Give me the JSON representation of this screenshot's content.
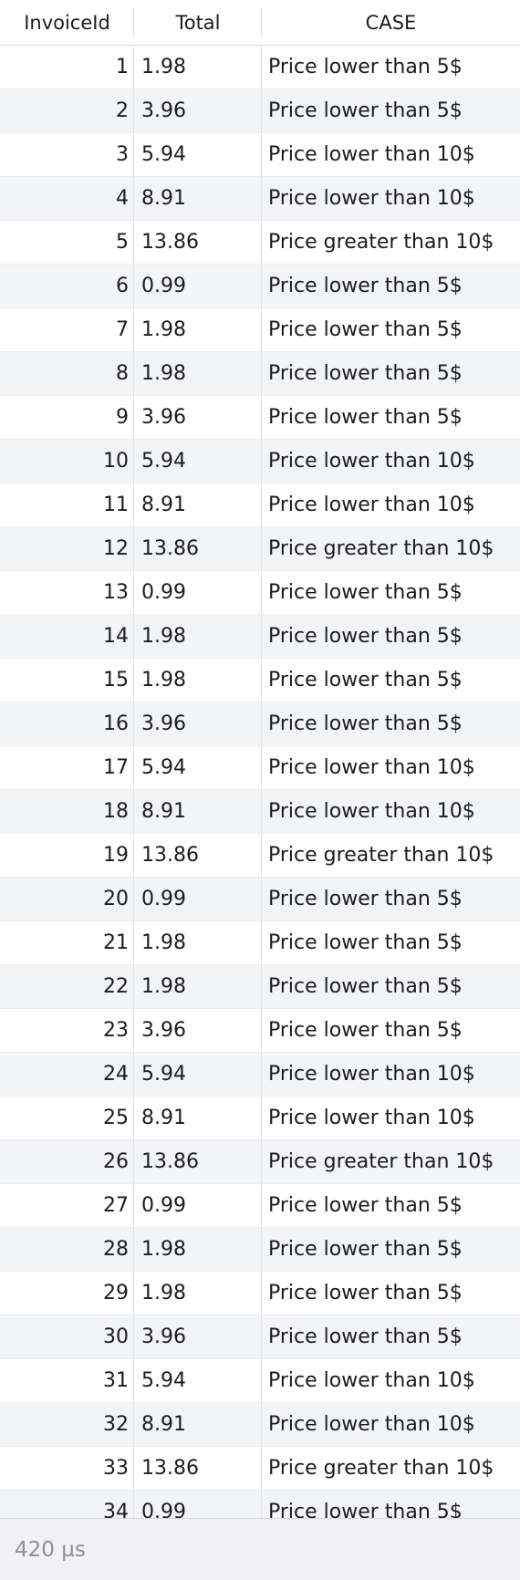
{
  "table": {
    "columns": [
      "InvoiceId",
      "Total",
      "CASE"
    ],
    "rows": [
      [
        "1",
        "1.98",
        "Price lower than 5$"
      ],
      [
        "2",
        "3.96",
        "Price lower than 5$"
      ],
      [
        "3",
        "5.94",
        "Price lower than 10$"
      ],
      [
        "4",
        "8.91",
        "Price lower than 10$"
      ],
      [
        "5",
        "13.86",
        "Price greater than 10$"
      ],
      [
        "6",
        "0.99",
        "Price lower than 5$"
      ],
      [
        "7",
        "1.98",
        "Price lower than 5$"
      ],
      [
        "8",
        "1.98",
        "Price lower than 5$"
      ],
      [
        "9",
        "3.96",
        "Price lower than 5$"
      ],
      [
        "10",
        "5.94",
        "Price lower than 10$"
      ],
      [
        "11",
        "8.91",
        "Price lower than 10$"
      ],
      [
        "12",
        "13.86",
        "Price greater than 10$"
      ],
      [
        "13",
        "0.99",
        "Price lower than 5$"
      ],
      [
        "14",
        "1.98",
        "Price lower than 5$"
      ],
      [
        "15",
        "1.98",
        "Price lower than 5$"
      ],
      [
        "16",
        "3.96",
        "Price lower than 5$"
      ],
      [
        "17",
        "5.94",
        "Price lower than 10$"
      ],
      [
        "18",
        "8.91",
        "Price lower than 10$"
      ],
      [
        "19",
        "13.86",
        "Price greater than 10$"
      ],
      [
        "20",
        "0.99",
        "Price lower than 5$"
      ],
      [
        "21",
        "1.98",
        "Price lower than 5$"
      ],
      [
        "22",
        "1.98",
        "Price lower than 5$"
      ],
      [
        "23",
        "3.96",
        "Price lower than 5$"
      ],
      [
        "24",
        "5.94",
        "Price lower than 10$"
      ],
      [
        "25",
        "8.91",
        "Price lower than 10$"
      ],
      [
        "26",
        "13.86",
        "Price greater than 10$"
      ],
      [
        "27",
        "0.99",
        "Price lower than 5$"
      ],
      [
        "28",
        "1.98",
        "Price lower than 5$"
      ],
      [
        "29",
        "1.98",
        "Price lower than 5$"
      ],
      [
        "30",
        "3.96",
        "Price lower than 5$"
      ],
      [
        "31",
        "5.94",
        "Price lower than 10$"
      ],
      [
        "32",
        "8.91",
        "Price lower than 10$"
      ],
      [
        "33",
        "13.86",
        "Price greater than 10$"
      ],
      [
        "34",
        "0.99",
        "Price lower than 5$"
      ]
    ]
  },
  "status": {
    "timing": "420 µs"
  }
}
